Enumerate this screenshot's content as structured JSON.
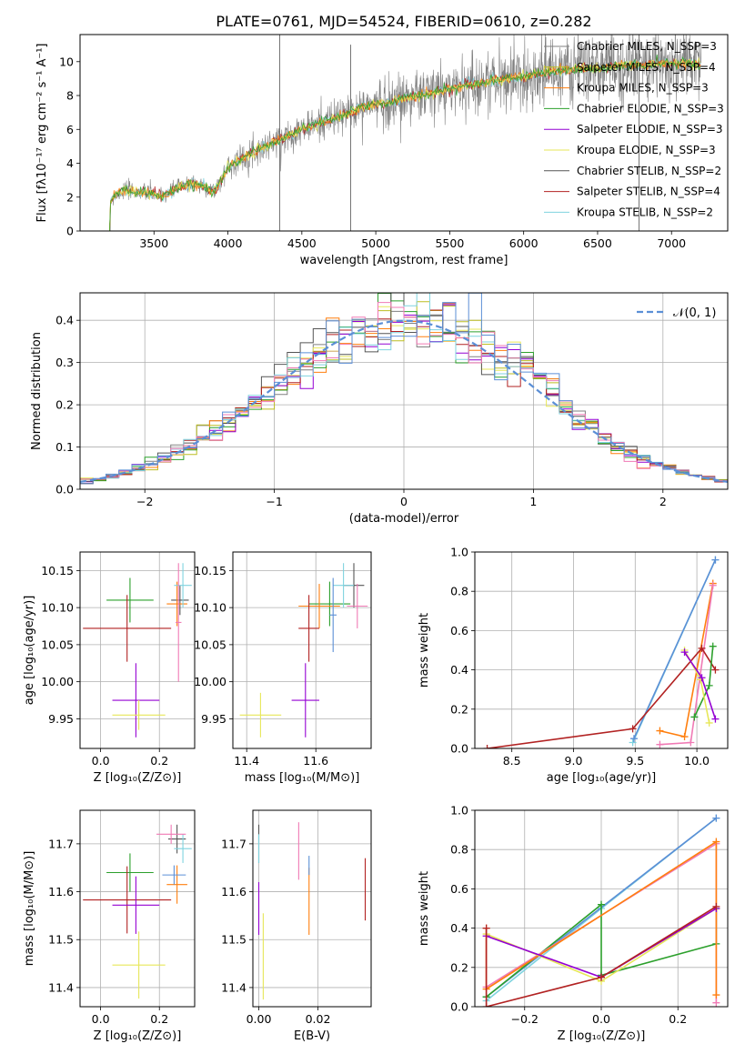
{
  "figure_title": "PLATE=0761, MJD=54524, FIBERID=0610, z=0.282",
  "colors": {
    "Chabrier MILES": "#808080",
    "Salpeter MILES": "#bcbd22",
    "Kroupa MILES": "#ff7f0e",
    "Chabrier ELODIE": "#2ca02c",
    "Salpeter ELODIE": "#9400d3",
    "Kroupa ELODIE": "#e7e758",
    "Chabrier STELIB": "#555555",
    "Salpeter STELIB": "#b22222",
    "Kroupa STELIB": "#7fd3df",
    "normal": "#5b8fd6",
    "blue_model": "#5b8fd6",
    "pink_model": "#f07ab5"
  },
  "chart_data": [
    {
      "id": "spectrum",
      "type": "line",
      "title": "PLATE=0761, MJD=54524, FIBERID=0610, z=0.282",
      "xlabel": "wavelength [Angstrom, rest frame]",
      "ylabel": "Flux [fλ10⁻¹⁷ erg cm⁻² s⁻¹ A⁻¹]",
      "xlim": [
        3000,
        7380
      ],
      "ylim": [
        0,
        11.6
      ],
      "xticks": [
        3500,
        4000,
        4500,
        5000,
        5500,
        6000,
        6500,
        7000
      ],
      "yticks": [
        0,
        2,
        4,
        6,
        8,
        10
      ],
      "legend_position": "top-right",
      "legend": [
        "Chabrier MILES, N_SSP=3",
        "Salpeter MILES, N_SSP=4",
        "Kroupa MILES, N_SSP=3",
        "Chabrier ELODIE, N_SSP=3",
        "Salpeter ELODIE, N_SSP=3",
        "Kroupa ELODIE, N_SSP=3",
        "Chabrier STELIB, N_SSP=2",
        "Salpeter STELIB, N_SSP=4",
        "Kroupa STELIB, N_SSP=2"
      ],
      "continuum": {
        "x": [
          3200,
          3230,
          3300,
          3400,
          3500,
          3550,
          3650,
          3750,
          3850,
          3900,
          3950,
          4000,
          4100,
          4200,
          4300,
          4400,
          4500,
          4600,
          4700,
          4800,
          4900,
          5000,
          5100,
          5200,
          5300,
          5400,
          5500,
          5600,
          5700,
          5800,
          5900,
          6000,
          6100,
          6200,
          6300,
          6400,
          6500,
          6600,
          6700,
          6800,
          6900,
          7000,
          7100,
          7200
        ],
        "y": [
          1.6,
          2.1,
          2.4,
          2.3,
          2.2,
          2.0,
          2.5,
          2.8,
          2.6,
          2.3,
          2.9,
          3.8,
          4.3,
          4.8,
          5.2,
          5.6,
          6.0,
          6.3,
          6.6,
          6.9,
          7.3,
          7.5,
          7.6,
          7.9,
          8.0,
          8.2,
          8.4,
          8.6,
          8.7,
          8.9,
          9.0,
          9.1,
          9.3,
          9.4,
          9.5,
          9.6,
          9.6,
          9.7,
          9.8,
          9.8,
          9.9,
          9.9,
          9.9,
          9.8
        ]
      }
    },
    {
      "id": "residuals",
      "type": "histogram",
      "xlabel": "(data-model)/error",
      "ylabel": "Normed distribution",
      "xlim": [
        -2.5,
        2.5
      ],
      "ylim": [
        0,
        0.465
      ],
      "xticks": [
        -2,
        -1,
        0,
        1,
        2
      ],
      "yticks": [
        0.0,
        0.1,
        0.2,
        0.3,
        0.4
      ],
      "grid": true,
      "legend": [
        "𝒩(0, 1)"
      ],
      "legend_position": "top-right",
      "bin_width": 0.1
    },
    {
      "id": "age-vs-Z",
      "type": "errorbar",
      "xlabel": "Z [log₁₀(Z/Z⊙)]",
      "ylabel": "age  [log₁₀(age/yr)]",
      "xlim": [
        -0.07,
        0.32
      ],
      "ylim": [
        9.91,
        10.175
      ],
      "xticks": [
        0.0,
        0.2
      ],
      "yticks": [
        9.95,
        10.0,
        10.05,
        10.1,
        10.15
      ],
      "grid": true,
      "points": [
        {
          "x": 0.1,
          "y": 10.11,
          "xerr": 0.08,
          "yerr": 0.03,
          "color": "#2ca02c"
        },
        {
          "x": 0.27,
          "y": 10.11,
          "xerr": 0.03,
          "yerr": 0.02,
          "color": "#555555"
        },
        {
          "x": 0.26,
          "y": 10.105,
          "xerr": 0.035,
          "yerr": 0.03,
          "color": "#ff7f0e"
        },
        {
          "x": 0.28,
          "y": 10.13,
          "xerr": 0.03,
          "yerr": 0.03,
          "color": "#7fd3df"
        },
        {
          "x": 0.09,
          "y": 10.072,
          "xerr": 0.15,
          "yerr": 0.045,
          "color": "#b22222"
        },
        {
          "x": 0.12,
          "y": 9.975,
          "xerr": 0.08,
          "yerr": 0.05,
          "color": "#9400d3"
        },
        {
          "x": 0.13,
          "y": 9.955,
          "xerr": 0.09,
          "yerr": 0.02,
          "color": "#e7e758"
        },
        {
          "x": 0.265,
          "y": 10.08,
          "xerr": 0.01,
          "yerr": 0.08,
          "color": "#f07ab5"
        }
      ]
    },
    {
      "id": "age-vs-mass",
      "type": "errorbar",
      "xlabel": "mass [log₁₀(M/M⊙)]",
      "ylabel": "",
      "xlim": [
        11.36,
        11.76
      ],
      "ylim": [
        9.91,
        10.175
      ],
      "xticks": [
        11.4,
        11.6
      ],
      "yticks": [
        9.95,
        10.0,
        10.05,
        10.1,
        10.15
      ],
      "grid": true,
      "points": [
        {
          "x": 11.64,
          "y": 10.105,
          "xerr": 0.06,
          "yerr": 0.03,
          "color": "#2ca02c"
        },
        {
          "x": 11.71,
          "y": 10.13,
          "xerr": 0.03,
          "yerr": 0.03,
          "color": "#555555"
        },
        {
          "x": 11.61,
          "y": 10.102,
          "xerr": 0.06,
          "yerr": 0.03,
          "color": "#ff7f0e"
        },
        {
          "x": 11.68,
          "y": 10.13,
          "xerr": 0.03,
          "yerr": 0.03,
          "color": "#7fd3df"
        },
        {
          "x": 11.58,
          "y": 10.072,
          "xerr": 0.03,
          "yerr": 0.045,
          "color": "#b22222"
        },
        {
          "x": 11.57,
          "y": 9.975,
          "xerr": 0.04,
          "yerr": 0.05,
          "color": "#9400d3"
        },
        {
          "x": 11.44,
          "y": 9.955,
          "xerr": 0.06,
          "yerr": 0.03,
          "color": "#e7e758"
        },
        {
          "x": 11.72,
          "y": 10.102,
          "xerr": 0.03,
          "yerr": 0.03,
          "color": "#f07ab5"
        },
        {
          "x": 11.65,
          "y": 10.09,
          "xerr": 0.01,
          "yerr": 0.05,
          "color": "#5b8fd6"
        }
      ]
    },
    {
      "id": "weight-vs-age",
      "type": "line",
      "xlabel": "age  [log₁₀(age/yr)]",
      "ylabel": "mass weight",
      "xlim": [
        8.2,
        10.25
      ],
      "ylim": [
        0,
        1.0
      ],
      "xticks": [
        8.5,
        9.0,
        9.5,
        10.0
      ],
      "yticks": [
        0.0,
        0.2,
        0.4,
        0.6,
        0.8,
        1.0
      ],
      "grid": true,
      "series": [
        {
          "color": "#7fd3df",
          "x": [
            9.48,
            10.15
          ],
          "y": [
            0.03,
            0.96
          ]
        },
        {
          "color": "#5b8fd6",
          "x": [
            9.49,
            10.15
          ],
          "y": [
            0.05,
            0.96
          ]
        },
        {
          "color": "#ff7f0e",
          "x": [
            9.7,
            9.9,
            10.13
          ],
          "y": [
            0.09,
            0.06,
            0.84
          ]
        },
        {
          "color": "#f07ab5",
          "x": [
            9.7,
            9.95,
            10.13
          ],
          "y": [
            0.02,
            0.03,
            0.83
          ]
        },
        {
          "color": "#b22222",
          "x": [
            8.3,
            9.48,
            10.04,
            10.15
          ],
          "y": [
            0.0,
            0.1,
            0.51,
            0.4
          ]
        },
        {
          "color": "#2ca02c",
          "x": [
            9.98,
            10.1,
            10.13
          ],
          "y": [
            0.16,
            0.32,
            0.52
          ]
        },
        {
          "color": "#e7e758",
          "x": [
            9.9,
            10.03,
            10.1
          ],
          "y": [
            0.5,
            0.35,
            0.13
          ]
        },
        {
          "color": "#9400d3",
          "x": [
            9.9,
            10.04,
            10.15
          ],
          "y": [
            0.49,
            0.36,
            0.15
          ]
        }
      ]
    },
    {
      "id": "mass-vs-Z",
      "type": "errorbar",
      "xlabel": "Z [log₁₀(Z/Z⊙)]",
      "ylabel": "mass [log₁₀(M/M⊙)]",
      "xlim": [
        -0.07,
        0.32
      ],
      "ylim": [
        11.36,
        11.77
      ],
      "xticks": [
        0.0,
        0.2
      ],
      "yticks": [
        11.4,
        11.5,
        11.6,
        11.7
      ],
      "grid": true,
      "points": [
        {
          "x": 0.1,
          "y": 11.64,
          "xerr": 0.08,
          "yerr": 0.04,
          "color": "#2ca02c"
        },
        {
          "x": 0.26,
          "y": 11.71,
          "xerr": 0.03,
          "yerr": 0.03,
          "color": "#555555"
        },
        {
          "x": 0.26,
          "y": 11.615,
          "xerr": 0.035,
          "yerr": 0.04,
          "color": "#ff7f0e"
        },
        {
          "x": 0.28,
          "y": 11.69,
          "xerr": 0.03,
          "yerr": 0.03,
          "color": "#7fd3df"
        },
        {
          "x": 0.09,
          "y": 11.583,
          "xerr": 0.15,
          "yerr": 0.07,
          "color": "#b22222"
        },
        {
          "x": 0.12,
          "y": 11.572,
          "xerr": 0.08,
          "yerr": 0.06,
          "color": "#9400d3"
        },
        {
          "x": 0.13,
          "y": 11.447,
          "xerr": 0.09,
          "yerr": 0.07,
          "color": "#e7e758"
        },
        {
          "x": 0.24,
          "y": 11.72,
          "xerr": 0.05,
          "yerr": 0.02,
          "color": "#f07ab5"
        },
        {
          "x": 0.25,
          "y": 11.635,
          "xerr": 0.04,
          "yerr": 0.02,
          "color": "#5b8fd6"
        }
      ]
    },
    {
      "id": "mass-vs-EBV",
      "type": "errorbar",
      "xlabel": "E(B-V)",
      "ylabel": "",
      "xlim": [
        -0.002,
        0.038
      ],
      "ylim": [
        11.36,
        11.77
      ],
      "xticks": [
        0.0,
        0.02
      ],
      "yticks": [
        11.4,
        11.5,
        11.6,
        11.7
      ],
      "grid": true,
      "points": [
        {
          "x": 0.0,
          "y": 11.7,
          "xerr": 0,
          "yerr": 0.04,
          "color": "#555555"
        },
        {
          "x": 0.0,
          "y": 11.69,
          "xerr": 0,
          "yerr": 0.03,
          "color": "#7fd3df"
        },
        {
          "x": 0.0,
          "y": 11.565,
          "xerr": 0,
          "yerr": 0.055,
          "color": "#9400d3"
        },
        {
          "x": 0.0015,
          "y": 11.465,
          "xerr": 0,
          "yerr": 0.09,
          "color": "#e7e758"
        },
        {
          "x": 0.0135,
          "y": 11.685,
          "xerr": 0,
          "yerr": 0.06,
          "color": "#f07ab5"
        },
        {
          "x": 0.017,
          "y": 11.58,
          "xerr": 0,
          "yerr": 0.07,
          "color": "#ff7f0e"
        },
        {
          "x": 0.017,
          "y": 11.655,
          "xerr": 0,
          "yerr": 0.02,
          "color": "#5b8fd6"
        },
        {
          "x": 0.036,
          "y": 11.605,
          "xerr": 0,
          "yerr": 0.065,
          "color": "#b22222"
        }
      ]
    },
    {
      "id": "weight-vs-Z",
      "type": "line",
      "xlabel": "Z [log₁₀(Z/Z⊙)]",
      "ylabel": "mass weight",
      "xlim": [
        -0.33,
        0.33
      ],
      "ylim": [
        0,
        1.0
      ],
      "xticks": [
        -0.2,
        0.0,
        0.2
      ],
      "yticks": [
        0.0,
        0.2,
        0.4,
        0.6,
        0.8,
        1.0
      ],
      "grid": true,
      "series": [
        {
          "color": "#7fd3df",
          "x": [
            -0.3,
            0.0,
            0.3
          ],
          "y": [
            0.03,
            0.5,
            0.96
          ]
        },
        {
          "color": "#5b8fd6",
          "x": [
            -0.3,
            0.3
          ],
          "y": [
            0.05,
            0.96
          ]
        },
        {
          "color": "#2ca02c",
          "x": [
            -0.3,
            0.0,
            0.0,
            0.3,
            0.3
          ],
          "y": [
            0.05,
            0.52,
            0.16,
            0.32,
            0.5
          ]
        },
        {
          "color": "#f07ab5",
          "x": [
            -0.3,
            0.3,
            0.3
          ],
          "y": [
            0.1,
            0.83,
            0.02
          ]
        },
        {
          "color": "#ff7f0e",
          "x": [
            -0.3,
            -0.3,
            0.3,
            0.3
          ],
          "y": [
            0.4,
            0.09,
            0.84,
            0.06
          ]
        },
        {
          "color": "#e7e758",
          "x": [
            -0.3,
            0.0,
            0.3
          ],
          "y": [
            0.37,
            0.13,
            0.5
          ]
        },
        {
          "color": "#9400d3",
          "x": [
            -0.3,
            0.0,
            0.3
          ],
          "y": [
            0.36,
            0.15,
            0.5
          ]
        },
        {
          "color": "#b22222",
          "x": [
            -0.3,
            -0.3,
            0.0,
            0.3
          ],
          "y": [
            0.4,
            0.0,
            0.15,
            0.51
          ]
        }
      ]
    }
  ]
}
